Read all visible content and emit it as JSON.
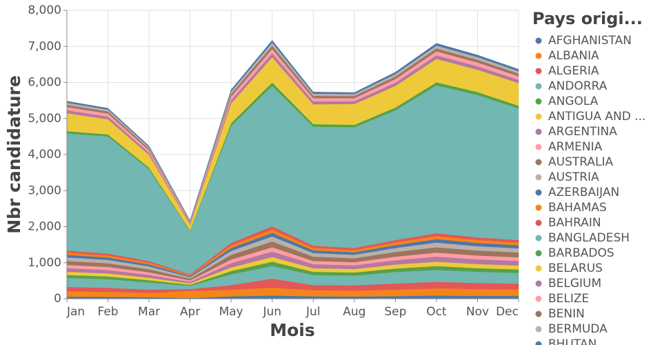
{
  "chart_data": {
    "type": "stacked-area",
    "x_label": "Mois",
    "y_label": "Nbr candidature",
    "legend_title": "Pays origi...",
    "grid": true,
    "legend_position": "right",
    "categories": [
      "Jan",
      "Feb",
      "Mar",
      "Apr",
      "May",
      "Jun",
      "Jul",
      "Aug",
      "Sep",
      "Oct",
      "Nov",
      "Dec"
    ],
    "ylim": [
      0,
      8000
    ],
    "yticks": [
      0,
      {
        "value": 1000,
        "label": "1,000"
      },
      {
        "value": 2000,
        "label": "2,000"
      },
      {
        "value": 3000,
        "label": "3,000"
      },
      {
        "value": 4000,
        "label": "4,000"
      },
      {
        "value": 5000,
        "label": "5,000"
      },
      {
        "value": 6000,
        "label": "6,000"
      },
      {
        "value": 7000,
        "label": "7,000"
      },
      {
        "value": 8000,
        "label": "8,000"
      }
    ],
    "series": [
      {
        "name": "AFGHANISTAN",
        "color": "#4c78a8",
        "values": [
          60,
          55,
          45,
          20,
          70,
          90,
          70,
          65,
          75,
          90,
          80,
          80
        ]
      },
      {
        "name": "ALBANIA",
        "color": "#f58518",
        "values": [
          150,
          140,
          120,
          200,
          180,
          220,
          170,
          160,
          180,
          200,
          190,
          180
        ]
      },
      {
        "name": "ALGERIA",
        "color": "#e45756",
        "values": [
          120,
          110,
          90,
          50,
          130,
          250,
          140,
          150,
          170,
          180,
          170,
          160
        ]
      },
      {
        "name": "ANDORRA",
        "color": "#72b7b2",
        "values": [
          250,
          240,
          200,
          90,
          300,
          350,
          280,
          270,
          320,
          330,
          310,
          300
        ]
      },
      {
        "name": "ANGOLA",
        "color": "#54a24b",
        "values": [
          80,
          75,
          60,
          30,
          90,
          120,
          90,
          85,
          95,
          110,
          100,
          95
        ]
      },
      {
        "name": "ANTIGUA AND ...",
        "color": "#eeca3b",
        "values": [
          90,
          85,
          70,
          40,
          100,
          130,
          100,
          95,
          110,
          120,
          115,
          110
        ]
      },
      {
        "name": "ARGENTINA",
        "color": "#b279a2",
        "values": [
          100,
          95,
          80,
          40,
          120,
          150,
          110,
          105,
          120,
          140,
          130,
          125
        ]
      },
      {
        "name": "ARMENIA",
        "color": "#ff9da6",
        "values": [
          90,
          85,
          70,
          40,
          100,
          120,
          90,
          85,
          100,
          110,
          105,
          100
        ]
      },
      {
        "name": "AUSTRALIA",
        "color": "#9d755d",
        "values": [
          110,
          100,
          85,
          50,
          130,
          160,
          120,
          110,
          130,
          150,
          140,
          135
        ]
      },
      {
        "name": "AUSTRIA",
        "color": "#bab0ac",
        "values": [
          100,
          95,
          80,
          40,
          110,
          140,
          100,
          95,
          110,
          130,
          120,
          115
        ]
      },
      {
        "name": "AZERBAIJAN",
        "color": "#4c78a8",
        "values": [
          70,
          65,
          55,
          30,
          80,
          100,
          75,
          70,
          80,
          95,
          90,
          85
        ]
      },
      {
        "name": "BAHAMAS",
        "color": "#f58518",
        "values": [
          60,
          55,
          45,
          25,
          70,
          90,
          65,
          60,
          70,
          85,
          80,
          75
        ]
      },
      {
        "name": "BAHRAIN",
        "color": "#e45756",
        "values": [
          60,
          55,
          45,
          25,
          70,
          90,
          65,
          60,
          70,
          80,
          75,
          70
        ]
      },
      {
        "name": "BANGLADESH",
        "color": "#72b7b2",
        "values": [
          3250,
          3250,
          2550,
          1200,
          3250,
          3900,
          3300,
          3350,
          3600,
          4100,
          3950,
          3650
        ]
      },
      {
        "name": "BARBADOS",
        "color": "#54a24b",
        "values": [
          60,
          55,
          45,
          20,
          70,
          90,
          70,
          65,
          75,
          85,
          80,
          75
        ]
      },
      {
        "name": "BELARUS",
        "color": "#eeca3b",
        "values": [
          500,
          420,
          350,
          150,
          550,
          700,
          550,
          580,
          600,
          650,
          620,
          630
        ]
      },
      {
        "name": "BELGIUM",
        "color": "#b279a2",
        "values": [
          80,
          75,
          60,
          30,
          90,
          110,
          80,
          75,
          90,
          100,
          95,
          90
        ]
      },
      {
        "name": "BELIZE",
        "color": "#ff9da6",
        "values": [
          90,
          85,
          70,
          35,
          100,
          120,
          90,
          85,
          100,
          110,
          105,
          100
        ]
      },
      {
        "name": "BENIN",
        "color": "#9d755d",
        "values": [
          60,
          55,
          45,
          20,
          70,
          90,
          65,
          60,
          70,
          80,
          75,
          70
        ]
      },
      {
        "name": "BERMUDA",
        "color": "#bab0ac",
        "values": [
          60,
          55,
          45,
          20,
          70,
          90,
          60,
          55,
          70,
          80,
          75,
          70
        ]
      },
      {
        "name": "BHUTAN",
        "color": "#4c78a8",
        "values": [
          40,
          35,
          30,
          15,
          50,
          60,
          45,
          40,
          50,
          60,
          55,
          50
        ]
      }
    ]
  }
}
